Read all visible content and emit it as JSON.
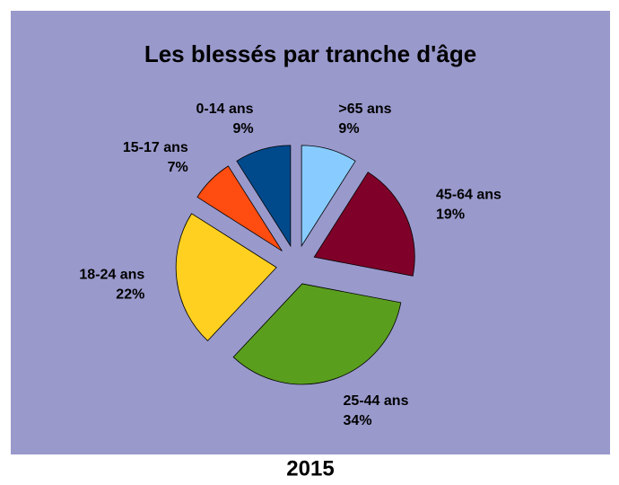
{
  "chart_data": {
    "type": "pie",
    "title": "Les blessés par tranche d'âge",
    "subtitle": "2015",
    "categories": [
      ">65 ans",
      "45-64 ans",
      "25-44 ans",
      "18-24 ans",
      "15-17 ans",
      "0-14 ans"
    ],
    "values": [
      9,
      19,
      34,
      22,
      7,
      9
    ],
    "value_labels": [
      "9%",
      "19%",
      "34%",
      "22%",
      "7%",
      "9%"
    ],
    "colors": [
      "#88ccff",
      "#7f0028",
      "#5a9e1e",
      "#ffd020",
      "#ff4c10",
      "#004a8c"
    ]
  }
}
